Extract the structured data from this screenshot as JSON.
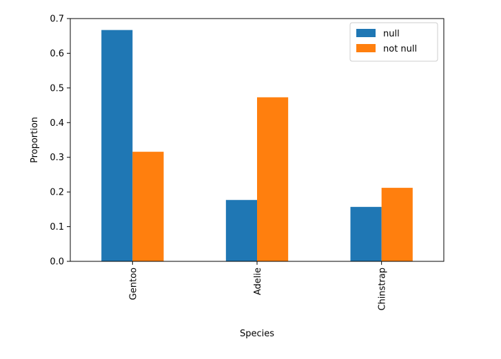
{
  "chart_data": {
    "type": "bar",
    "title": "",
    "xlabel": "Species",
    "ylabel": "Proportion",
    "categories": [
      "Gentoo",
      "Adelie",
      "Chinstrap"
    ],
    "series": [
      {
        "name": "null",
        "color": "#1f77b4",
        "values": [
          0.667,
          0.177,
          0.157
        ]
      },
      {
        "name": "not null",
        "color": "#ff7f0e",
        "values": [
          0.316,
          0.473,
          0.212
        ]
      }
    ],
    "ylim": [
      0,
      0.7
    ],
    "yticks": [
      0.0,
      0.1,
      0.2,
      0.3,
      0.4,
      0.5,
      0.6,
      0.7
    ],
    "ytick_labels": [
      "0.0",
      "0.1",
      "0.2",
      "0.3",
      "0.4",
      "0.5",
      "0.6",
      "0.7"
    ],
    "legend_position": "top-right",
    "grid": false
  }
}
